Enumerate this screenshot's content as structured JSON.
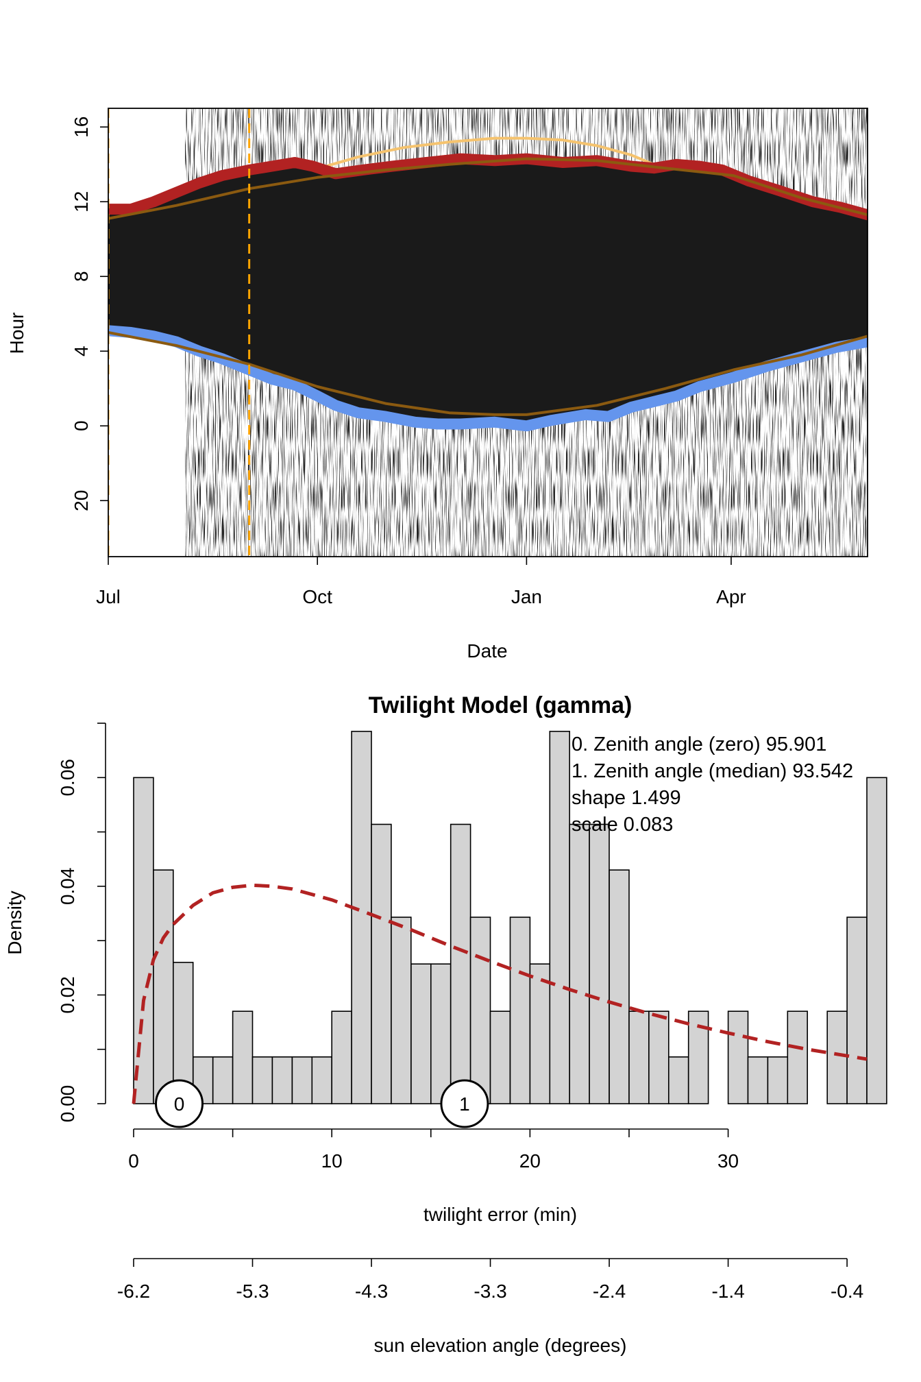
{
  "chart_data": [
    {
      "type": "heatmap",
      "xlabel": "Date",
      "ylabel": "Hour",
      "x_ticks": [
        "Jul",
        "Oct",
        "Jan",
        "Apr"
      ],
      "x_tick_days": [
        0,
        92,
        184,
        274
      ],
      "x_range_days": [
        0,
        334
      ],
      "y_ticks": [
        "16",
        "12",
        "8",
        "4",
        "0",
        "20"
      ],
      "y_tick_values": [
        16,
        12,
        8,
        4,
        0,
        -4
      ],
      "y_range": [
        -7,
        17
      ],
      "grid": false,
      "colors": {
        "dark_band": "#1a1a1a",
        "sunset_line": "#b22222",
        "sunrise_line": "#6495ed",
        "model_line": "#8b5a10",
        "model_line_light": "#f5c36e",
        "marker_line": "#ffa500"
      },
      "vertical_markers_days": [
        0,
        62
      ],
      "series": [
        {
          "name": "",
          "role": "sunset",
          "days": [
            0,
            10,
            20,
            30,
            40,
            50,
            62,
            72,
            82,
            90,
            100,
            112,
            125,
            140,
            155,
            170,
            184,
            200,
            215,
            230,
            240,
            250,
            260,
            270,
            282,
            295,
            310,
            322,
            334
          ],
          "hours": [
            11.6,
            11.6,
            12.0,
            12.5,
            13.0,
            13.4,
            13.7,
            13.9,
            14.1,
            13.9,
            13.5,
            13.7,
            13.9,
            14.1,
            14.3,
            14.2,
            14.3,
            14.1,
            14.2,
            13.9,
            13.8,
            14.0,
            13.9,
            13.7,
            13.1,
            12.6,
            12.0,
            11.7,
            11.3
          ]
        },
        {
          "name": "",
          "role": "sunrise",
          "days": [
            0,
            10,
            20,
            30,
            40,
            50,
            62,
            72,
            82,
            92,
            100,
            110,
            122,
            135,
            145,
            155,
            170,
            184,
            195,
            210,
            220,
            230,
            240,
            250,
            260,
            275,
            290,
            305,
            320,
            334
          ],
          "hours": [
            5.1,
            5.0,
            4.8,
            4.5,
            4.0,
            3.6,
            3.0,
            2.5,
            2.2,
            1.6,
            1.1,
            0.7,
            0.5,
            0.2,
            0.1,
            0.1,
            0.2,
            0.0,
            0.3,
            0.6,
            0.5,
            1.0,
            1.3,
            1.6,
            2.1,
            2.6,
            3.2,
            3.7,
            4.2,
            4.5
          ]
        },
        {
          "name": "",
          "role": "model-sunset",
          "days": [
            0,
            30,
            62,
            92,
            122,
            150,
            184,
            215,
            245,
            275,
            305,
            334
          ],
          "hours": [
            11.1,
            11.8,
            12.7,
            13.3,
            13.7,
            14.0,
            14.3,
            14.2,
            13.8,
            13.4,
            12.2,
            11.3
          ]
        },
        {
          "name": "",
          "role": "model-sunset-light",
          "days": [
            90,
            110,
            130,
            150,
            170,
            184,
            200,
            215,
            230,
            240
          ],
          "hours": [
            13.7,
            14.4,
            14.9,
            15.2,
            15.4,
            15.4,
            15.3,
            15.0,
            14.5,
            14.0
          ]
        },
        {
          "name": "",
          "role": "model-sunrise",
          "days": [
            0,
            30,
            62,
            92,
            122,
            150,
            170,
            184,
            215,
            245,
            275,
            305,
            334
          ],
          "hours": [
            5.0,
            4.3,
            3.3,
            2.1,
            1.2,
            0.7,
            0.6,
            0.6,
            1.1,
            2.0,
            3.0,
            3.8,
            4.8
          ]
        }
      ]
    },
    {
      "type": "bar",
      "title": "Twilight Model (gamma)",
      "xlabel": "twilight error (min)",
      "ylabel": "Density",
      "xlim": [
        0,
        37
      ],
      "ylim": [
        0,
        0.07
      ],
      "bin_width": 1,
      "bin_start": 0,
      "values": [
        0.06,
        0.043,
        0.026,
        0.0086,
        0.0086,
        0.017,
        0.0086,
        0.0086,
        0.0086,
        0.0086,
        0.017,
        0.0685,
        0.0514,
        0.0343,
        0.0257,
        0.0257,
        0.0514,
        0.0343,
        0.017,
        0.0343,
        0.0257,
        0.0685,
        0.0514,
        0.0514,
        0.043,
        0.017,
        0.017,
        0.0086,
        0.017,
        0,
        0.017,
        0.0086,
        0.0086,
        0.017,
        0,
        0.017,
        0.0343,
        0.06
      ],
      "x_ticks": [
        "0",
        "10",
        "20",
        "30"
      ],
      "x_tick_values": [
        0,
        10,
        20,
        30
      ],
      "y_ticks": [
        "0.00",
        "0.02",
        "0.04",
        "0.06"
      ],
      "y_tick_values": [
        0,
        0.02,
        0.04,
        0.06
      ],
      "density_curve": {
        "color": "#b22222",
        "style": "dashed",
        "x": [
          0,
          0.5,
          1,
          1.5,
          2,
          3,
          4,
          5,
          6,
          7,
          8,
          10,
          12,
          14,
          16,
          18,
          20,
          22,
          24,
          26,
          28,
          30,
          32,
          34,
          36,
          37
        ],
        "y": [
          0,
          0.019,
          0.0265,
          0.0305,
          0.033,
          0.0365,
          0.0388,
          0.0398,
          0.0402,
          0.04,
          0.0395,
          0.0375,
          0.0348,
          0.032,
          0.029,
          0.0262,
          0.0235,
          0.021,
          0.0187,
          0.0166,
          0.0147,
          0.013,
          0.0114,
          0.01,
          0.0088,
          0.0082
        ]
      },
      "markers": [
        {
          "label": "0",
          "x": 2.3
        },
        {
          "label": "1",
          "x": 16.7
        }
      ],
      "annotations": [
        "0. Zenith angle (zero) 95.901",
        "1. Zenith angle (median) 93.542",
        "shape 1.499",
        "scale 0.083"
      ],
      "secondary_axis": {
        "label": "sun elevation angle (degrees)",
        "ticks": [
          "-6.2",
          "-5.3",
          "-4.3",
          "-3.3",
          "-2.4",
          "-1.4",
          "-0.4"
        ],
        "tick_positions_min": [
          0,
          6,
          12,
          18,
          24,
          30,
          36
        ]
      }
    }
  ]
}
